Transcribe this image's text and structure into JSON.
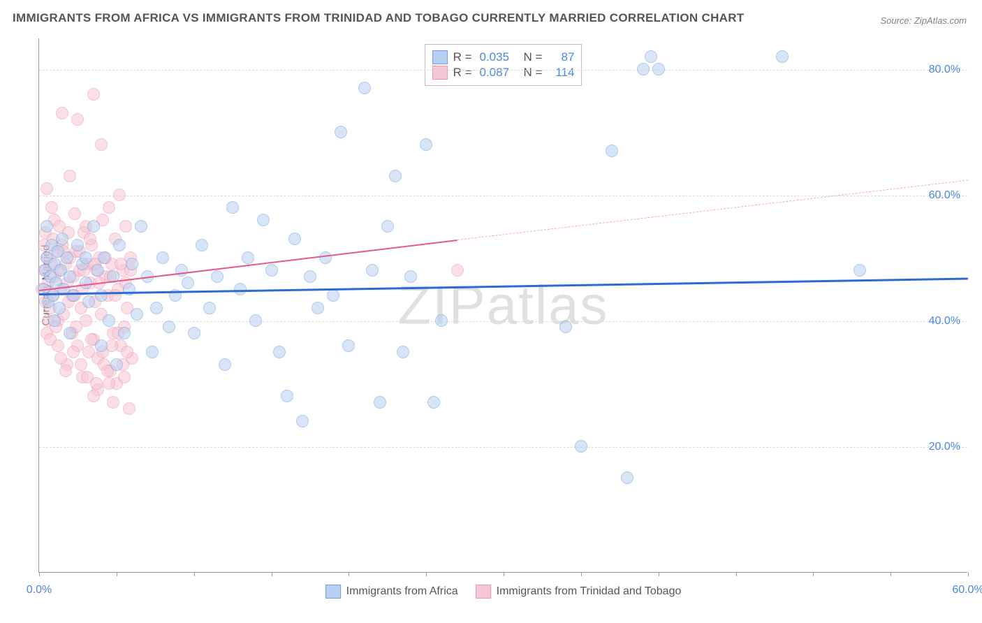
{
  "title": "IMMIGRANTS FROM AFRICA VS IMMIGRANTS FROM TRINIDAD AND TOBAGO CURRENTLY MARRIED CORRELATION CHART",
  "source": "Source: ZipAtlas.com",
  "watermark": "ZIPatlas",
  "chart": {
    "type": "scatter",
    "ylabel": "Currently Married",
    "xlim": [
      0,
      60
    ],
    "ylim": [
      0,
      85
    ],
    "xticks": [
      0,
      5,
      10,
      15,
      20,
      25,
      30,
      35,
      40,
      45,
      50,
      55,
      60
    ],
    "xtick_labels": {
      "0": "0.0%",
      "60": "60.0%"
    },
    "yticks": [
      20,
      40,
      60,
      80
    ],
    "ytick_labels": [
      "20.0%",
      "40.0%",
      "60.0%",
      "80.0%"
    ],
    "grid_color": "#dcdcdc",
    "axis_color": "#9a9a9a",
    "background_color": "#ffffff",
    "marker_radius": 9,
    "marker_opacity": 0.55,
    "series": [
      {
        "name": "Immigrants from Africa",
        "color_fill": "#b7d0f1",
        "color_stroke": "#6da0e3",
        "R": "0.035",
        "N": "87",
        "trend": {
          "x1": 0,
          "y1": 44.5,
          "x2": 60,
          "y2": 47.0,
          "color": "#2d6bd4",
          "width": 3,
          "dash": false
        },
        "points": [
          [
            0.3,
            45
          ],
          [
            0.4,
            48
          ],
          [
            0.5,
            50
          ],
          [
            0.6,
            43
          ],
          [
            0.7,
            47
          ],
          [
            0.8,
            52
          ],
          [
            0.9,
            44
          ],
          [
            1.0,
            49
          ],
          [
            1.1,
            46
          ],
          [
            1.2,
            51
          ],
          [
            1.3,
            42
          ],
          [
            1.4,
            48
          ],
          [
            1.5,
            53
          ],
          [
            1.6,
            45
          ],
          [
            1.8,
            50
          ],
          [
            2.0,
            47
          ],
          [
            2.2,
            44
          ],
          [
            2.5,
            52
          ],
          [
            2.8,
            49
          ],
          [
            3.0,
            46
          ],
          [
            3.2,
            43
          ],
          [
            3.5,
            55
          ],
          [
            3.8,
            48
          ],
          [
            4.0,
            36
          ],
          [
            4.2,
            50
          ],
          [
            4.5,
            40
          ],
          [
            4.8,
            47
          ],
          [
            5.0,
            33
          ],
          [
            5.2,
            52
          ],
          [
            5.5,
            38
          ],
          [
            5.8,
            45
          ],
          [
            6.0,
            49
          ],
          [
            6.3,
            41
          ],
          [
            6.6,
            55
          ],
          [
            7.0,
            47
          ],
          [
            7.3,
            35
          ],
          [
            7.6,
            42
          ],
          [
            8.0,
            50
          ],
          [
            8.4,
            39
          ],
          [
            8.8,
            44
          ],
          [
            9.2,
            48
          ],
          [
            9.6,
            46
          ],
          [
            10.0,
            38
          ],
          [
            10.5,
            52
          ],
          [
            11.0,
            42
          ],
          [
            11.5,
            47
          ],
          [
            12.0,
            33
          ],
          [
            12.5,
            58
          ],
          [
            13.0,
            45
          ],
          [
            13.5,
            50
          ],
          [
            14.0,
            40
          ],
          [
            14.5,
            56
          ],
          [
            15.0,
            48
          ],
          [
            15.5,
            35
          ],
          [
            16.0,
            28
          ],
          [
            16.5,
            53
          ],
          [
            17.0,
            24
          ],
          [
            17.5,
            47
          ],
          [
            18.0,
            42
          ],
          [
            18.5,
            50
          ],
          [
            19.0,
            44
          ],
          [
            19.5,
            70
          ],
          [
            20.0,
            36
          ],
          [
            21.0,
            77
          ],
          [
            21.5,
            48
          ],
          [
            22.0,
            27
          ],
          [
            22.5,
            55
          ],
          [
            23.0,
            63
          ],
          [
            23.5,
            35
          ],
          [
            24.0,
            47
          ],
          [
            25.0,
            68
          ],
          [
            25.5,
            27
          ],
          [
            26.0,
            40
          ],
          [
            34.0,
            39
          ],
          [
            35.0,
            20
          ],
          [
            37.0,
            67
          ],
          [
            38.0,
            15
          ],
          [
            39.0,
            80
          ],
          [
            39.5,
            82
          ],
          [
            40.0,
            80
          ],
          [
            48.0,
            82
          ],
          [
            53.0,
            48
          ],
          [
            0.5,
            55
          ],
          [
            1.0,
            40
          ],
          [
            2.0,
            38
          ],
          [
            3.0,
            50
          ],
          [
            4.0,
            44
          ]
        ]
      },
      {
        "name": "Immigrants from Trinidad and Tobago",
        "color_fill": "#f6c6d4",
        "color_stroke": "#ef95af",
        "R": "0.087",
        "N": "114",
        "trend_solid": {
          "x1": 0,
          "y1": 45.0,
          "x2": 27,
          "y2": 53.0,
          "color": "#e8588b",
          "width": 2
        },
        "trend_dash": {
          "x1": 27,
          "y1": 53.0,
          "x2": 60,
          "y2": 62.5,
          "color": "#f3a8c0",
          "width": 1.5
        },
        "points": [
          [
            0.2,
            45
          ],
          [
            0.3,
            48
          ],
          [
            0.4,
            43
          ],
          [
            0.5,
            50
          ],
          [
            0.6,
            46
          ],
          [
            0.7,
            42
          ],
          [
            0.8,
            49
          ],
          [
            0.9,
            44
          ],
          [
            1.0,
            47
          ],
          [
            1.1,
            51
          ],
          [
            1.2,
            40
          ],
          [
            1.3,
            48
          ],
          [
            1.4,
            45
          ],
          [
            1.5,
            52
          ],
          [
            1.6,
            41
          ],
          [
            1.7,
            49
          ],
          [
            1.8,
            46
          ],
          [
            1.9,
            43
          ],
          [
            2.0,
            50
          ],
          [
            2.1,
            38
          ],
          [
            2.2,
            47
          ],
          [
            2.3,
            44
          ],
          [
            2.4,
            51
          ],
          [
            2.5,
            36
          ],
          [
            2.6,
            48
          ],
          [
            2.7,
            42
          ],
          [
            2.8,
            45
          ],
          [
            2.9,
            54
          ],
          [
            3.0,
            40
          ],
          [
            3.1,
            49
          ],
          [
            3.2,
            35
          ],
          [
            3.3,
            46
          ],
          [
            3.4,
            52
          ],
          [
            3.5,
            37
          ],
          [
            3.6,
            43
          ],
          [
            3.7,
            48
          ],
          [
            3.8,
            34
          ],
          [
            3.9,
            50
          ],
          [
            4.0,
            41
          ],
          [
            4.1,
            56
          ],
          [
            4.2,
            33
          ],
          [
            4.3,
            47
          ],
          [
            4.4,
            44
          ],
          [
            4.5,
            58
          ],
          [
            4.6,
            32
          ],
          [
            4.7,
            49
          ],
          [
            4.8,
            38
          ],
          [
            4.9,
            53
          ],
          [
            5.0,
            30
          ],
          [
            5.1,
            45
          ],
          [
            5.2,
            60
          ],
          [
            5.3,
            36
          ],
          [
            5.4,
            48
          ],
          [
            5.5,
            31
          ],
          [
            5.6,
            55
          ],
          [
            5.7,
            42
          ],
          [
            5.8,
            26
          ],
          [
            5.9,
            50
          ],
          [
            6.0,
            34
          ],
          [
            0.5,
            61
          ],
          [
            1.5,
            73
          ],
          [
            2.5,
            72
          ],
          [
            3.5,
            76
          ],
          [
            4.0,
            68
          ],
          [
            2.0,
            63
          ],
          [
            3.0,
            55
          ],
          [
            1.0,
            56
          ],
          [
            0.8,
            58
          ],
          [
            2.8,
            31
          ],
          [
            3.8,
            29
          ],
          [
            4.8,
            27
          ],
          [
            1.8,
            33
          ],
          [
            2.2,
            35
          ],
          [
            0.5,
            38
          ],
          [
            1.2,
            36
          ],
          [
            3.5,
            28
          ],
          [
            4.5,
            30
          ],
          [
            5.5,
            39
          ],
          [
            0.3,
            52
          ],
          [
            0.4,
            54
          ],
          [
            0.6,
            40
          ],
          [
            0.7,
            37
          ],
          [
            0.9,
            53
          ],
          [
            1.1,
            39
          ],
          [
            1.3,
            55
          ],
          [
            1.4,
            34
          ],
          [
            1.6,
            51
          ],
          [
            1.7,
            32
          ],
          [
            1.9,
            54
          ],
          [
            2.1,
            44
          ],
          [
            2.3,
            57
          ],
          [
            2.4,
            39
          ],
          [
            2.6,
            51
          ],
          [
            2.7,
            33
          ],
          [
            2.9,
            48
          ],
          [
            3.1,
            31
          ],
          [
            3.3,
            53
          ],
          [
            3.4,
            37
          ],
          [
            3.6,
            49
          ],
          [
            3.7,
            30
          ],
          [
            3.9,
            46
          ],
          [
            4.1,
            35
          ],
          [
            4.3,
            50
          ],
          [
            4.4,
            32
          ],
          [
            4.6,
            47
          ],
          [
            4.7,
            36
          ],
          [
            4.9,
            44
          ],
          [
            5.1,
            38
          ],
          [
            5.3,
            49
          ],
          [
            5.4,
            33
          ],
          [
            5.6,
            46
          ],
          [
            5.7,
            35
          ],
          [
            5.9,
            48
          ],
          [
            27.0,
            48
          ]
        ]
      }
    ]
  }
}
